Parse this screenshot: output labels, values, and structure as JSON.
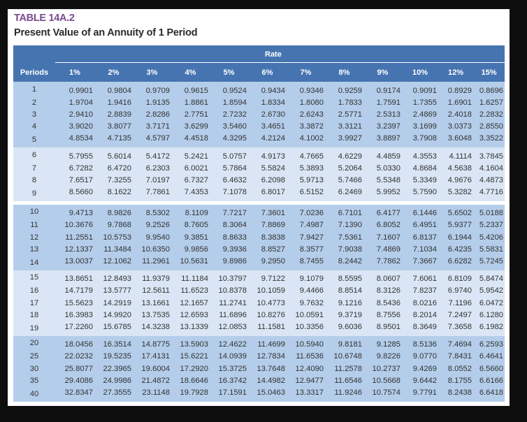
{
  "header": {
    "table_label": "TABLE 14A.2",
    "title": "Present Value of an Annuity of 1 Period"
  },
  "table": {
    "rate_label": "Rate",
    "periods_label": "Periods",
    "columns": [
      "1%",
      "2%",
      "3%",
      "4%",
      "5%",
      "6%",
      "7%",
      "8%",
      "9%",
      "10%",
      "12%",
      "15%"
    ],
    "rows": [
      {
        "period": "1",
        "values": [
          "0.9901",
          "0.9804",
          "0.9709",
          "0.9615",
          "0.9524",
          "0.9434",
          "0.9346",
          "0.9259",
          "0.9174",
          "0.9091",
          "0.8929",
          "0.8696"
        ]
      },
      {
        "period": "2",
        "values": [
          "1.9704",
          "1.9416",
          "1.9135",
          "1.8861",
          "1.8594",
          "1.8334",
          "1.8080",
          "1.7833",
          "1.7591",
          "1.7355",
          "1.6901",
          "1.6257"
        ]
      },
      {
        "period": "3",
        "values": [
          "2.9410",
          "2.8839",
          "2.8286",
          "2.7751",
          "2.7232",
          "2.6730",
          "2.6243",
          "2.5771",
          "2.5313",
          "2.4869",
          "2.4018",
          "2.2832"
        ]
      },
      {
        "period": "4",
        "values": [
          "3.9020",
          "3.8077",
          "3.7171",
          "3.6299",
          "3.5460",
          "3.4651",
          "3.3872",
          "3.3121",
          "3.2397",
          "3.1699",
          "3.0373",
          "2.8550"
        ]
      },
      {
        "period": "5",
        "values": [
          "4.8534",
          "4.7135",
          "4.5797",
          "4.4518",
          "4.3295",
          "4.2124",
          "4.1002",
          "3.9927",
          "3.8897",
          "3.7908",
          "3.6048",
          "3.3522"
        ]
      },
      {
        "period": "6",
        "values": [
          "5.7955",
          "5.6014",
          "5.4172",
          "5.2421",
          "5.0757",
          "4.9173",
          "4.7665",
          "4.6229",
          "4.4859",
          "4.3553",
          "4.1114",
          "3.7845"
        ]
      },
      {
        "period": "7",
        "values": [
          "6.7282",
          "6.4720",
          "6.2303",
          "6.0021",
          "5.7864",
          "5.5824",
          "5.3893",
          "5.2064",
          "5.0330",
          "4.8684",
          "4.5638",
          "4.1604"
        ]
      },
      {
        "period": "8",
        "values": [
          "7.6517",
          "7.3255",
          "7.0197",
          "6.7327",
          "6.4632",
          "6.2098",
          "5.9713",
          "5.7466",
          "5.5348",
          "5.3349",
          "4.9676",
          "4.4873"
        ]
      },
      {
        "period": "9",
        "values": [
          "8.5660",
          "8.1622",
          "7.7861",
          "7.4353",
          "7.1078",
          "6.8017",
          "6.5152",
          "6.2469",
          "5.9952",
          "5.7590",
          "5.3282",
          "4.7716"
        ]
      },
      {
        "period": "10",
        "values": [
          "9.4713",
          "8.9826",
          "8.5302",
          "8.1109",
          "7.7217",
          "7.3601",
          "7.0236",
          "6.7101",
          "6.4177",
          "6.1446",
          "5.6502",
          "5.0188"
        ]
      },
      {
        "period": "11",
        "values": [
          "10.3676",
          "9.7868",
          "9.2526",
          "8.7605",
          "8.3064",
          "7.8869",
          "7.4987",
          "7.1390",
          "6.8052",
          "6.4951",
          "5.9377",
          "5.2337"
        ]
      },
      {
        "period": "12",
        "values": [
          "11.2551",
          "10.5753",
          "9.9540",
          "9.3851",
          "8.8633",
          "8.3838",
          "7.9427",
          "7.5361",
          "7.1607",
          "6.8137",
          "6.1944",
          "5.4206"
        ]
      },
      {
        "period": "13",
        "values": [
          "12.1337",
          "11.3484",
          "10.6350",
          "9.9856",
          "9.3936",
          "8.8527",
          "8.3577",
          "7.9038",
          "7.4869",
          "7.1034",
          "6.4235",
          "5.5831"
        ]
      },
      {
        "period": "14",
        "values": [
          "13.0037",
          "12.1062",
          "11.2961",
          "10.5631",
          "9.8986",
          "9.2950",
          "8.7455",
          "8.2442",
          "7.7862",
          "7.3667",
          "6.6282",
          "5.7245"
        ]
      },
      {
        "period": "15",
        "values": [
          "13.8651",
          "12.8493",
          "11.9379",
          "11.1184",
          "10.3797",
          "9.7122",
          "9.1079",
          "8.5595",
          "8.0607",
          "7.6061",
          "6.8109",
          "5.8474"
        ]
      },
      {
        "period": "16",
        "values": [
          "14.7179",
          "13.5777",
          "12.5611",
          "11.6523",
          "10.8378",
          "10.1059",
          "9.4466",
          "8.8514",
          "8.3126",
          "7.8237",
          "6.9740",
          "5.9542"
        ]
      },
      {
        "period": "17",
        "values": [
          "15.5623",
          "14.2919",
          "13.1661",
          "12.1657",
          "11.2741",
          "10.4773",
          "9.7632",
          "9.1216",
          "8.5436",
          "8.0216",
          "7.1196",
          "6.0472"
        ]
      },
      {
        "period": "18",
        "values": [
          "16.3983",
          "14.9920",
          "13.7535",
          "12.6593",
          "11.6896",
          "10.8276",
          "10.0591",
          "9.3719",
          "8.7556",
          "8.2014",
          "7.2497",
          "6.1280"
        ]
      },
      {
        "period": "19",
        "values": [
          "17.2260",
          "15.6785",
          "14.3238",
          "13.1339",
          "12.0853",
          "11.1581",
          "10.3356",
          "9.6036",
          "8.9501",
          "8.3649",
          "7.3658",
          "6.1982"
        ]
      },
      {
        "period": "20",
        "values": [
          "18.0456",
          "16.3514",
          "14.8775",
          "13.5903",
          "12.4622",
          "11.4699",
          "10.5940",
          "9.8181",
          "9.1285",
          "8.5136",
          "7.4694",
          "6.2593"
        ]
      },
      {
        "period": "25",
        "values": [
          "22.0232",
          "19.5235",
          "17.4131",
          "15.6221",
          "14.0939",
          "12.7834",
          "11.6536",
          "10.6748",
          "9.8226",
          "9.0770",
          "7.8431",
          "6.4641"
        ]
      },
      {
        "period": "30",
        "values": [
          "25.8077",
          "22.3965",
          "19.6004",
          "17.2920",
          "15.3725",
          "13.7648",
          "12.4090",
          "11.2578",
          "10.2737",
          "9.4269",
          "8.0552",
          "6.5660"
        ]
      },
      {
        "period": "35",
        "values": [
          "29.4086",
          "24.9986",
          "21.4872",
          "18.6646",
          "16.3742",
          "14.4982",
          "12.9477",
          "11.6546",
          "10.5668",
          "9.6442",
          "8.1755",
          "6.6166"
        ]
      },
      {
        "period": "40",
        "values": [
          "32.8347",
          "27.3555",
          "23.1148",
          "19.7928",
          "17.1591",
          "15.0463",
          "13.3317",
          "11.9246",
          "10.7574",
          "9.7791",
          "8.2438",
          "6.6418"
        ]
      }
    ]
  },
  "colors": {
    "header_bg": "#4674b1",
    "band_dark": "#b4cdea",
    "band_light": "#dae6f5",
    "label_purple": "#7a4a8f"
  }
}
